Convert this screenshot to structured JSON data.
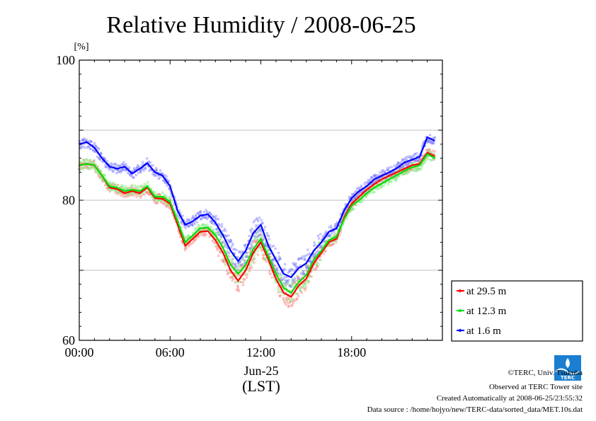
{
  "chart_data": {
    "type": "line",
    "title": "Relative Humidity / 2008-06-25",
    "ylabel": "[%]",
    "xlabel_date": "Jun-25",
    "xlabel_tz": "(LST)",
    "ylim": [
      60,
      100
    ],
    "xlim": [
      0,
      24
    ],
    "yticks": [
      "60",
      "80",
      "100"
    ],
    "ytick_values": [
      60,
      80,
      100
    ],
    "xticks": [
      "00:00",
      "06:00",
      "12:00",
      "18:00"
    ],
    "xtick_values": [
      0,
      6,
      12,
      18
    ],
    "grid": "horizontal",
    "legend_position": "bottom-right outside",
    "x": [
      0,
      0.5,
      1,
      1.5,
      2,
      2.5,
      3,
      3.5,
      4,
      4.5,
      5,
      5.5,
      6,
      6.5,
      7,
      7.5,
      8,
      8.5,
      9,
      9.5,
      10,
      10.5,
      11,
      11.5,
      12,
      12.5,
      13,
      13.5,
      14,
      14.5,
      15,
      15.5,
      16,
      16.5,
      17,
      17.5,
      18,
      18.5,
      19,
      19.5,
      20,
      20.5,
      21,
      21.5,
      22,
      22.5,
      23,
      23.5
    ],
    "series": [
      {
        "name": "at 29.5 m",
        "color": "#ff0000",
        "values": [
          85.0,
          85.2,
          85.0,
          83.5,
          81.8,
          81.6,
          81.0,
          81.3,
          81.0,
          81.8,
          80.3,
          80.2,
          79.5,
          76.5,
          73.5,
          74.5,
          75.5,
          75.6,
          74.3,
          72.5,
          70.0,
          68.5,
          70.0,
          72.5,
          74.0,
          71.5,
          68.8,
          66.8,
          66.2,
          67.8,
          68.8,
          71.0,
          72.5,
          74.0,
          74.5,
          77.5,
          79.5,
          80.5,
          81.5,
          82.3,
          83.0,
          83.5,
          84.0,
          84.5,
          85.0,
          85.2,
          86.8,
          86.3
        ]
      },
      {
        "name": "at 12.3 m",
        "color": "#00dd00",
        "values": [
          85.0,
          85.2,
          85.0,
          83.5,
          82.0,
          81.8,
          81.3,
          81.5,
          81.3,
          82.0,
          80.5,
          80.5,
          79.8,
          77.0,
          74.0,
          75.0,
          76.0,
          76.1,
          75.0,
          73.2,
          70.8,
          69.5,
          70.8,
          73.0,
          74.5,
          72.0,
          69.5,
          67.5,
          66.8,
          68.3,
          69.3,
          71.5,
          72.8,
          74.3,
          74.8,
          77.3,
          79.2,
          80.0,
          81.0,
          81.8,
          82.4,
          83.0,
          83.6,
          84.2,
          84.7,
          85.0,
          86.6,
          86.0
        ]
      },
      {
        "name": "at 1.6 m",
        "color": "#0000ff",
        "values": [
          88.0,
          88.3,
          87.5,
          86.0,
          84.8,
          84.5,
          84.8,
          83.8,
          84.5,
          85.3,
          84.0,
          83.5,
          82.0,
          78.5,
          76.5,
          77.0,
          77.8,
          78.0,
          76.8,
          75.0,
          72.8,
          71.3,
          72.8,
          75.3,
          76.5,
          73.5,
          71.5,
          69.5,
          69.0,
          70.3,
          71.0,
          72.8,
          74.0,
          75.5,
          76.0,
          78.5,
          80.3,
          81.3,
          82.0,
          83.0,
          83.5,
          84.0,
          84.6,
          85.4,
          85.8,
          86.2,
          89.0,
          88.5
        ]
      }
    ]
  },
  "credits": {
    "copyright": "©TERC, Univ. Tsukuba",
    "observed": "Observed at TERC Tower site",
    "created": "Created Automatically at 2008-06-25/23:55:32",
    "source": "Data source : /home/hojyo/new/TERC-data/sorted_data/MET.10s.dat",
    "logo_text": "TERC"
  }
}
